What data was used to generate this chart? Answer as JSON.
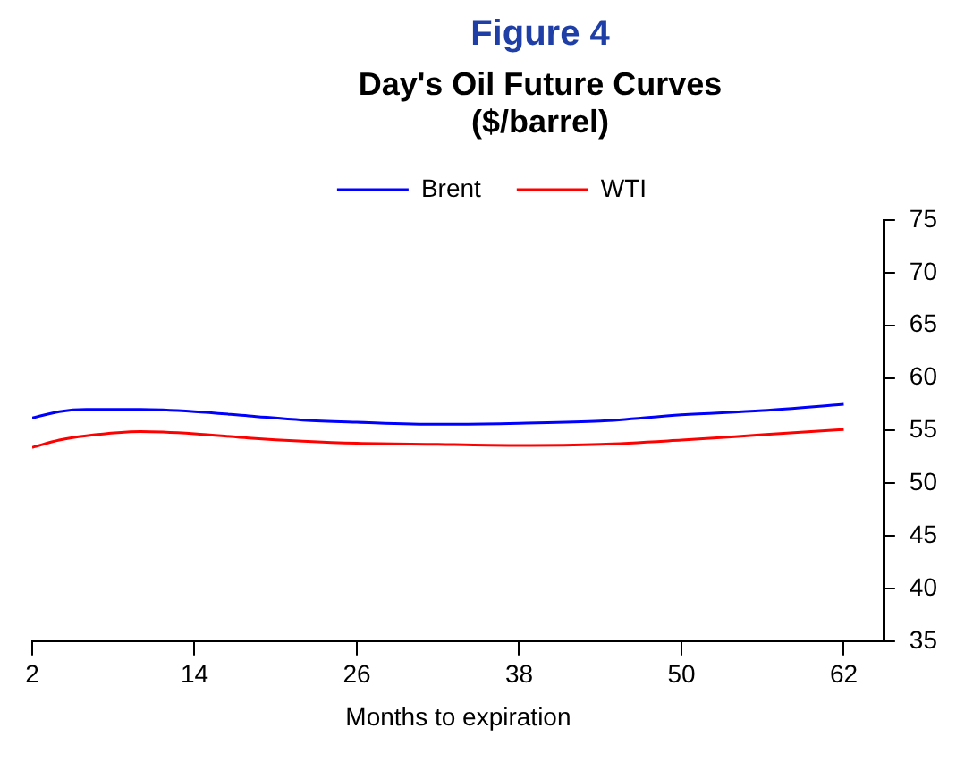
{
  "chart_data": {
    "type": "line",
    "title": "Figure 4",
    "subtitle": "Day's Oil Future Curves\n($/barrel)",
    "xlabel": "Months to expiration",
    "x": [
      2,
      4,
      6,
      10,
      14,
      18,
      22,
      26,
      32,
      38,
      44,
      50,
      56,
      62
    ],
    "series": [
      {
        "name": "Brent",
        "color": "#0000ff",
        "values": [
          56.2,
          56.8,
          57.0,
          57.0,
          56.8,
          56.4,
          56.0,
          55.8,
          55.6,
          55.7,
          55.9,
          56.5,
          56.9,
          57.5
        ]
      },
      {
        "name": "WTI",
        "color": "#ff0000",
        "values": [
          53.4,
          54.1,
          54.5,
          54.9,
          54.7,
          54.3,
          54.0,
          53.8,
          53.7,
          53.6,
          53.7,
          54.1,
          54.6,
          55.1
        ]
      }
    ],
    "xlim": [
      2,
      65
    ],
    "xticks": [
      2,
      14,
      26,
      38,
      50,
      62
    ],
    "ylim": [
      35,
      75
    ],
    "yticks": [
      35,
      40,
      45,
      50,
      55,
      60,
      65,
      70,
      75
    ],
    "grid": false,
    "legend": "top"
  }
}
